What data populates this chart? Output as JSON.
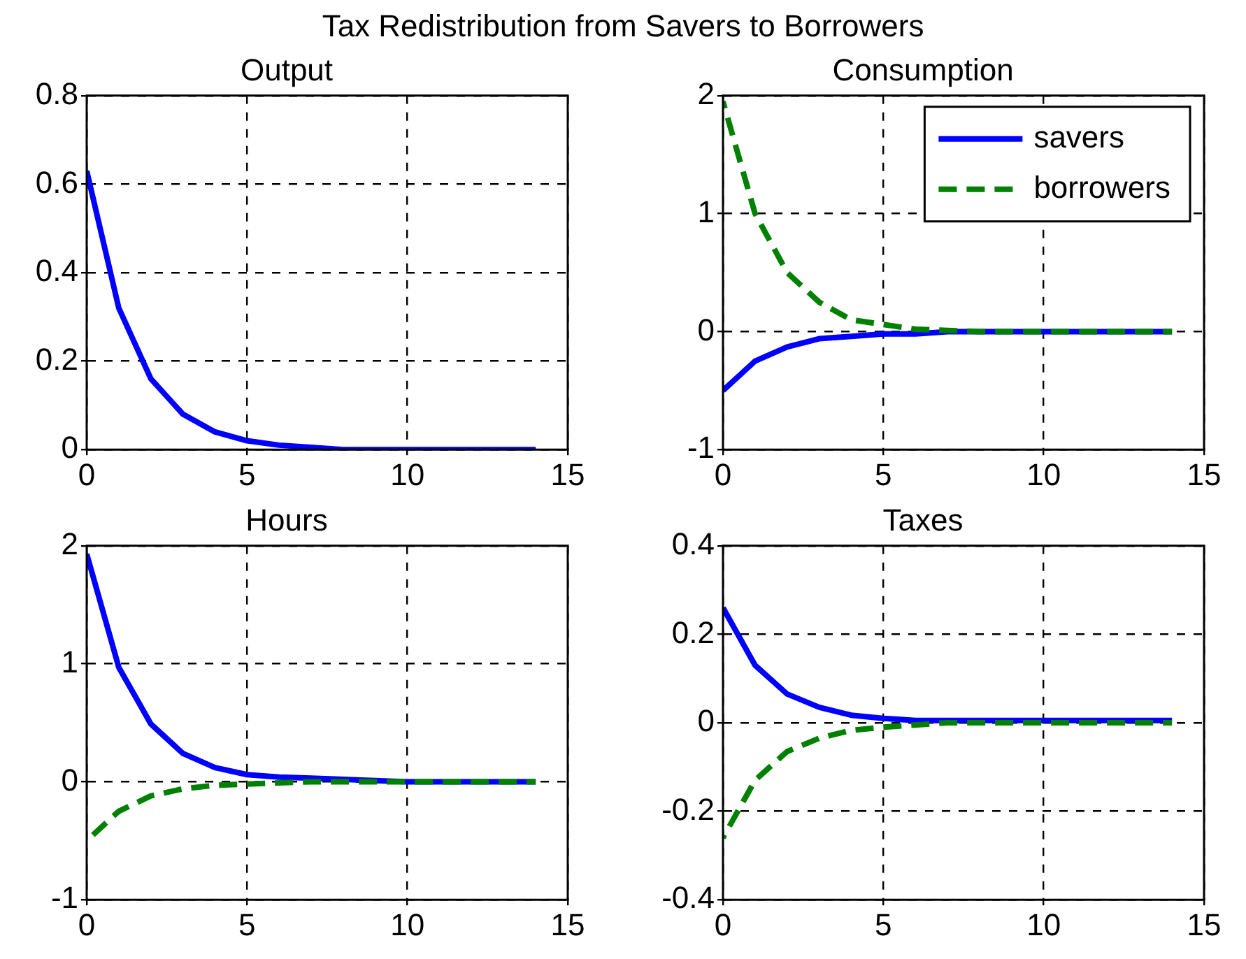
{
  "chart_data": [
    {
      "type": "line",
      "title": "Output",
      "annotations": [
        "Tax Redistribution from Savers to Borrowers"
      ],
      "x": [
        0,
        1,
        2,
        3,
        4,
        5,
        6,
        7,
        8,
        9,
        10,
        11,
        12,
        13,
        14
      ],
      "series": [
        {
          "color": "#0000ff",
          "line_style": "solid",
          "values": [
            0.63,
            0.32,
            0.16,
            0.08,
            0.04,
            0.02,
            0.01,
            0.005,
            0,
            0,
            0,
            0,
            0,
            0,
            0
          ]
        }
      ],
      "xlim": [
        0,
        15
      ],
      "xticks": [
        0,
        5,
        10,
        15
      ],
      "ylim": [
        0,
        0.8
      ],
      "yticks": [
        0,
        0.2,
        0.4,
        0.6,
        0.8
      ],
      "grid": true,
      "legend": false
    },
    {
      "type": "line",
      "title": "Consumption",
      "x": [
        0,
        1,
        2,
        3,
        4,
        5,
        6,
        7,
        8,
        9,
        10,
        11,
        12,
        13,
        14
      ],
      "series": [
        {
          "name": "savers",
          "color": "#0000ff",
          "line_style": "solid",
          "values": [
            -0.5,
            -0.25,
            -0.13,
            -0.06,
            -0.04,
            -0.02,
            -0.02,
            0,
            0,
            0,
            0,
            0,
            0,
            0,
            0
          ]
        },
        {
          "name": "borrowers",
          "color": "#008000",
          "line_style": "dashed",
          "values": [
            1.95,
            1.0,
            0.5,
            0.25,
            0.1,
            0.06,
            0.02,
            0.01,
            0,
            0,
            0,
            0,
            0,
            0,
            0
          ]
        }
      ],
      "xlim": [
        0,
        15
      ],
      "xticks": [
        0,
        5,
        10,
        15
      ],
      "ylim": [
        -1,
        2
      ],
      "yticks": [
        -1,
        0,
        1,
        2
      ],
      "grid": true,
      "legend": "top right"
    },
    {
      "type": "line",
      "title": "Hours",
      "x": [
        0,
        1,
        2,
        3,
        4,
        5,
        6,
        7,
        8,
        9,
        10,
        11,
        12,
        13,
        14
      ],
      "series": [
        {
          "color": "#0000ff",
          "line_style": "solid",
          "values": [
            1.93,
            0.97,
            0.49,
            0.24,
            0.12,
            0.06,
            0.04,
            0.03,
            0.02,
            0.01,
            0,
            0,
            0,
            0,
            0
          ]
        },
        {
          "color": "#008000",
          "line_style": "dashed",
          "values": [
            -0.5,
            -0.25,
            -0.12,
            -0.06,
            -0.03,
            -0.02,
            -0.01,
            0,
            0,
            0,
            0,
            0,
            0,
            0,
            0
          ]
        }
      ],
      "xlim": [
        0,
        15
      ],
      "xticks": [
        0,
        5,
        10,
        15
      ],
      "ylim": [
        -1,
        2
      ],
      "yticks": [
        -1,
        0,
        1,
        2
      ],
      "grid": true,
      "legend": false
    },
    {
      "type": "line",
      "title": "Taxes",
      "x": [
        0,
        1,
        2,
        3,
        4,
        5,
        6,
        7,
        8,
        9,
        10,
        11,
        12,
        13,
        14
      ],
      "series": [
        {
          "color": "#0000ff",
          "line_style": "solid",
          "values": [
            0.26,
            0.13,
            0.065,
            0.035,
            0.017,
            0.01,
            0.005,
            0.005,
            0.005,
            0.005,
            0.005,
            0.005,
            0.005,
            0.005,
            0.005
          ]
        },
        {
          "color": "#008000",
          "line_style": "dashed",
          "values": [
            -0.26,
            -0.13,
            -0.065,
            -0.035,
            -0.017,
            -0.01,
            -0.005,
            0,
            0,
            0,
            0,
            0,
            0,
            0,
            0
          ]
        }
      ],
      "xlim": [
        0,
        15
      ],
      "xticks": [
        0,
        5,
        10,
        15
      ],
      "ylim": [
        -0.4,
        0.4
      ],
      "yticks": [
        -0.4,
        -0.2,
        0,
        0.2,
        0.4
      ],
      "grid": true,
      "legend": false
    }
  ]
}
